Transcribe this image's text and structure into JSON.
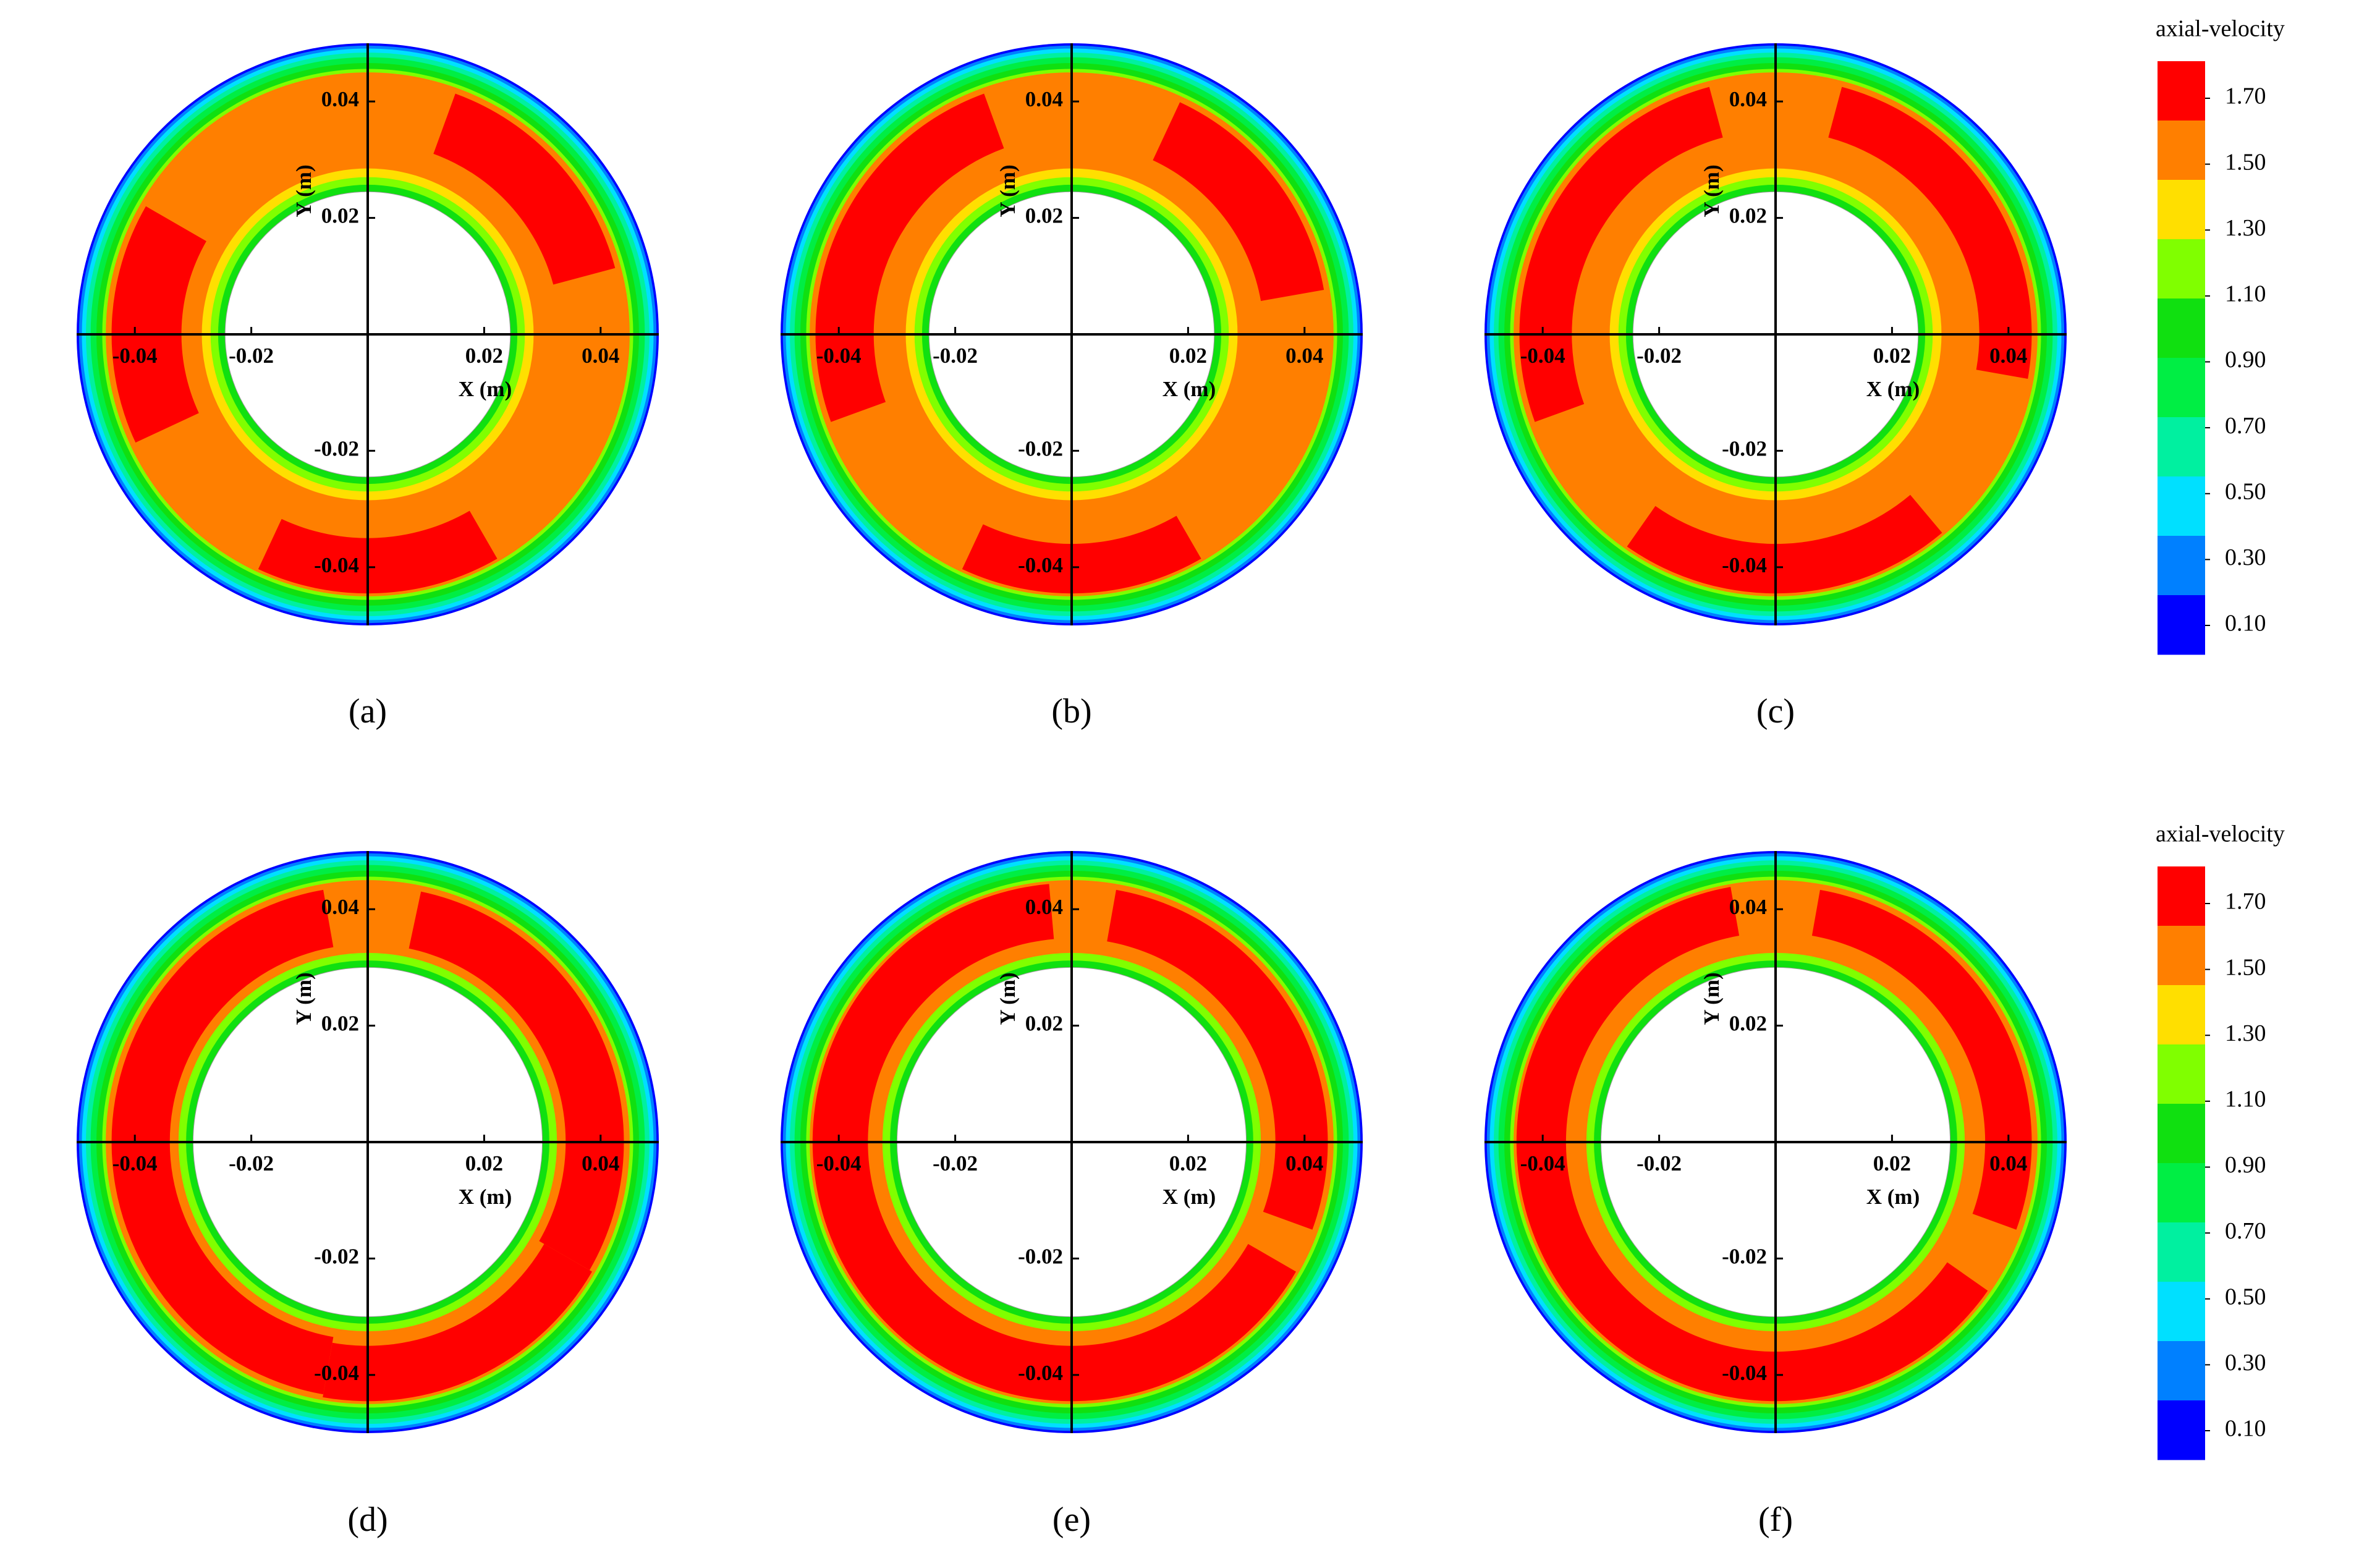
{
  "chart_data": [
    {
      "type": "contour",
      "caption": "(a)",
      "xlabel": "X (m)",
      "ylabel": "Y (m)",
      "xlim": [
        -0.05,
        0.05
      ],
      "ylim": [
        -0.05,
        0.05
      ],
      "xticks": [
        -0.04,
        -0.02,
        0.02,
        0.04
      ],
      "yticks": [
        -0.04,
        -0.02,
        0.02,
        0.04
      ]
    },
    {
      "type": "contour",
      "caption": "(b)",
      "xlabel": "X (m)",
      "ylabel": "Y (m)",
      "xlim": [
        -0.05,
        0.05
      ],
      "ylim": [
        -0.05,
        0.05
      ],
      "xticks": [
        -0.04,
        -0.02,
        0.02,
        0.04
      ],
      "yticks": [
        -0.04,
        -0.02,
        0.02,
        0.04
      ]
    },
    {
      "type": "contour",
      "caption": "(c)",
      "xlabel": "X (m)",
      "ylabel": "Y (m)",
      "xlim": [
        -0.05,
        0.05
      ],
      "ylim": [
        -0.05,
        0.05
      ],
      "xticks": [
        -0.04,
        -0.02,
        0.02,
        0.04
      ],
      "yticks": [
        -0.04,
        -0.02,
        0.02,
        0.04
      ],
      "colorbar": {
        "title": "axial-velocity",
        "levels": [
          {
            "value": 1.7,
            "label": "1.70"
          },
          {
            "value": 1.5,
            "label": "1.50"
          },
          {
            "value": 1.3,
            "label": "1.30"
          },
          {
            "value": 1.1,
            "label": "1.10"
          },
          {
            "value": 0.9,
            "label": "0.90"
          },
          {
            "value": 0.7,
            "label": "0.70"
          },
          {
            "value": 0.5,
            "label": "0.50"
          },
          {
            "value": 0.3,
            "label": "0.30"
          },
          {
            "value": 0.1,
            "label": "0.10"
          }
        ],
        "colors": [
          "#ff0000",
          "#ff7f00",
          "#ffdf00",
          "#80ff00",
          "#10e010",
          "#00ee44",
          "#00f0a0",
          "#00e0ff",
          "#0080ff",
          "#0000ff"
        ]
      }
    },
    {
      "type": "contour",
      "caption": "(d)",
      "xlabel": "X (m)",
      "ylabel": "Y (m)",
      "xlim": [
        -0.05,
        0.05
      ],
      "ylim": [
        -0.05,
        0.05
      ],
      "xticks": [
        -0.04,
        -0.02,
        0.02,
        0.04
      ],
      "yticks": [
        -0.04,
        -0.02,
        0.02,
        0.04
      ]
    },
    {
      "type": "contour",
      "caption": "(e)",
      "xlabel": "X (m)",
      "ylabel": "Y (m)",
      "xlim": [
        -0.05,
        0.05
      ],
      "ylim": [
        -0.05,
        0.05
      ],
      "xticks": [
        -0.04,
        -0.02,
        0.02,
        0.04
      ],
      "yticks": [
        -0.04,
        -0.02,
        0.02,
        0.04
      ]
    },
    {
      "type": "contour",
      "caption": "(f)",
      "xlabel": "X (m)",
      "ylabel": "Y (m)",
      "xlim": [
        -0.05,
        0.05
      ],
      "ylim": [
        -0.05,
        0.05
      ],
      "xticks": [
        -0.04,
        -0.02,
        0.02,
        0.04
      ],
      "yticks": [
        -0.04,
        -0.02,
        0.02,
        0.04
      ],
      "colorbar": {
        "title": "axial-velocity",
        "levels": [
          {
            "value": 1.7,
            "label": "1.70"
          },
          {
            "value": 1.5,
            "label": "1.50"
          },
          {
            "value": 1.3,
            "label": "1.30"
          },
          {
            "value": 1.1,
            "label": "1.10"
          },
          {
            "value": 0.9,
            "label": "0.90"
          },
          {
            "value": 0.7,
            "label": "0.70"
          },
          {
            "value": 0.5,
            "label": "0.50"
          },
          {
            "value": 0.3,
            "label": "0.30"
          },
          {
            "value": 0.1,
            "label": "0.10"
          }
        ],
        "colors": [
          "#ff0000",
          "#ff7f00",
          "#ffdf00",
          "#80ff00",
          "#10e010",
          "#00ee44",
          "#00f0a0",
          "#00e0ff",
          "#0080ff",
          "#0000ff"
        ]
      }
    }
  ]
}
